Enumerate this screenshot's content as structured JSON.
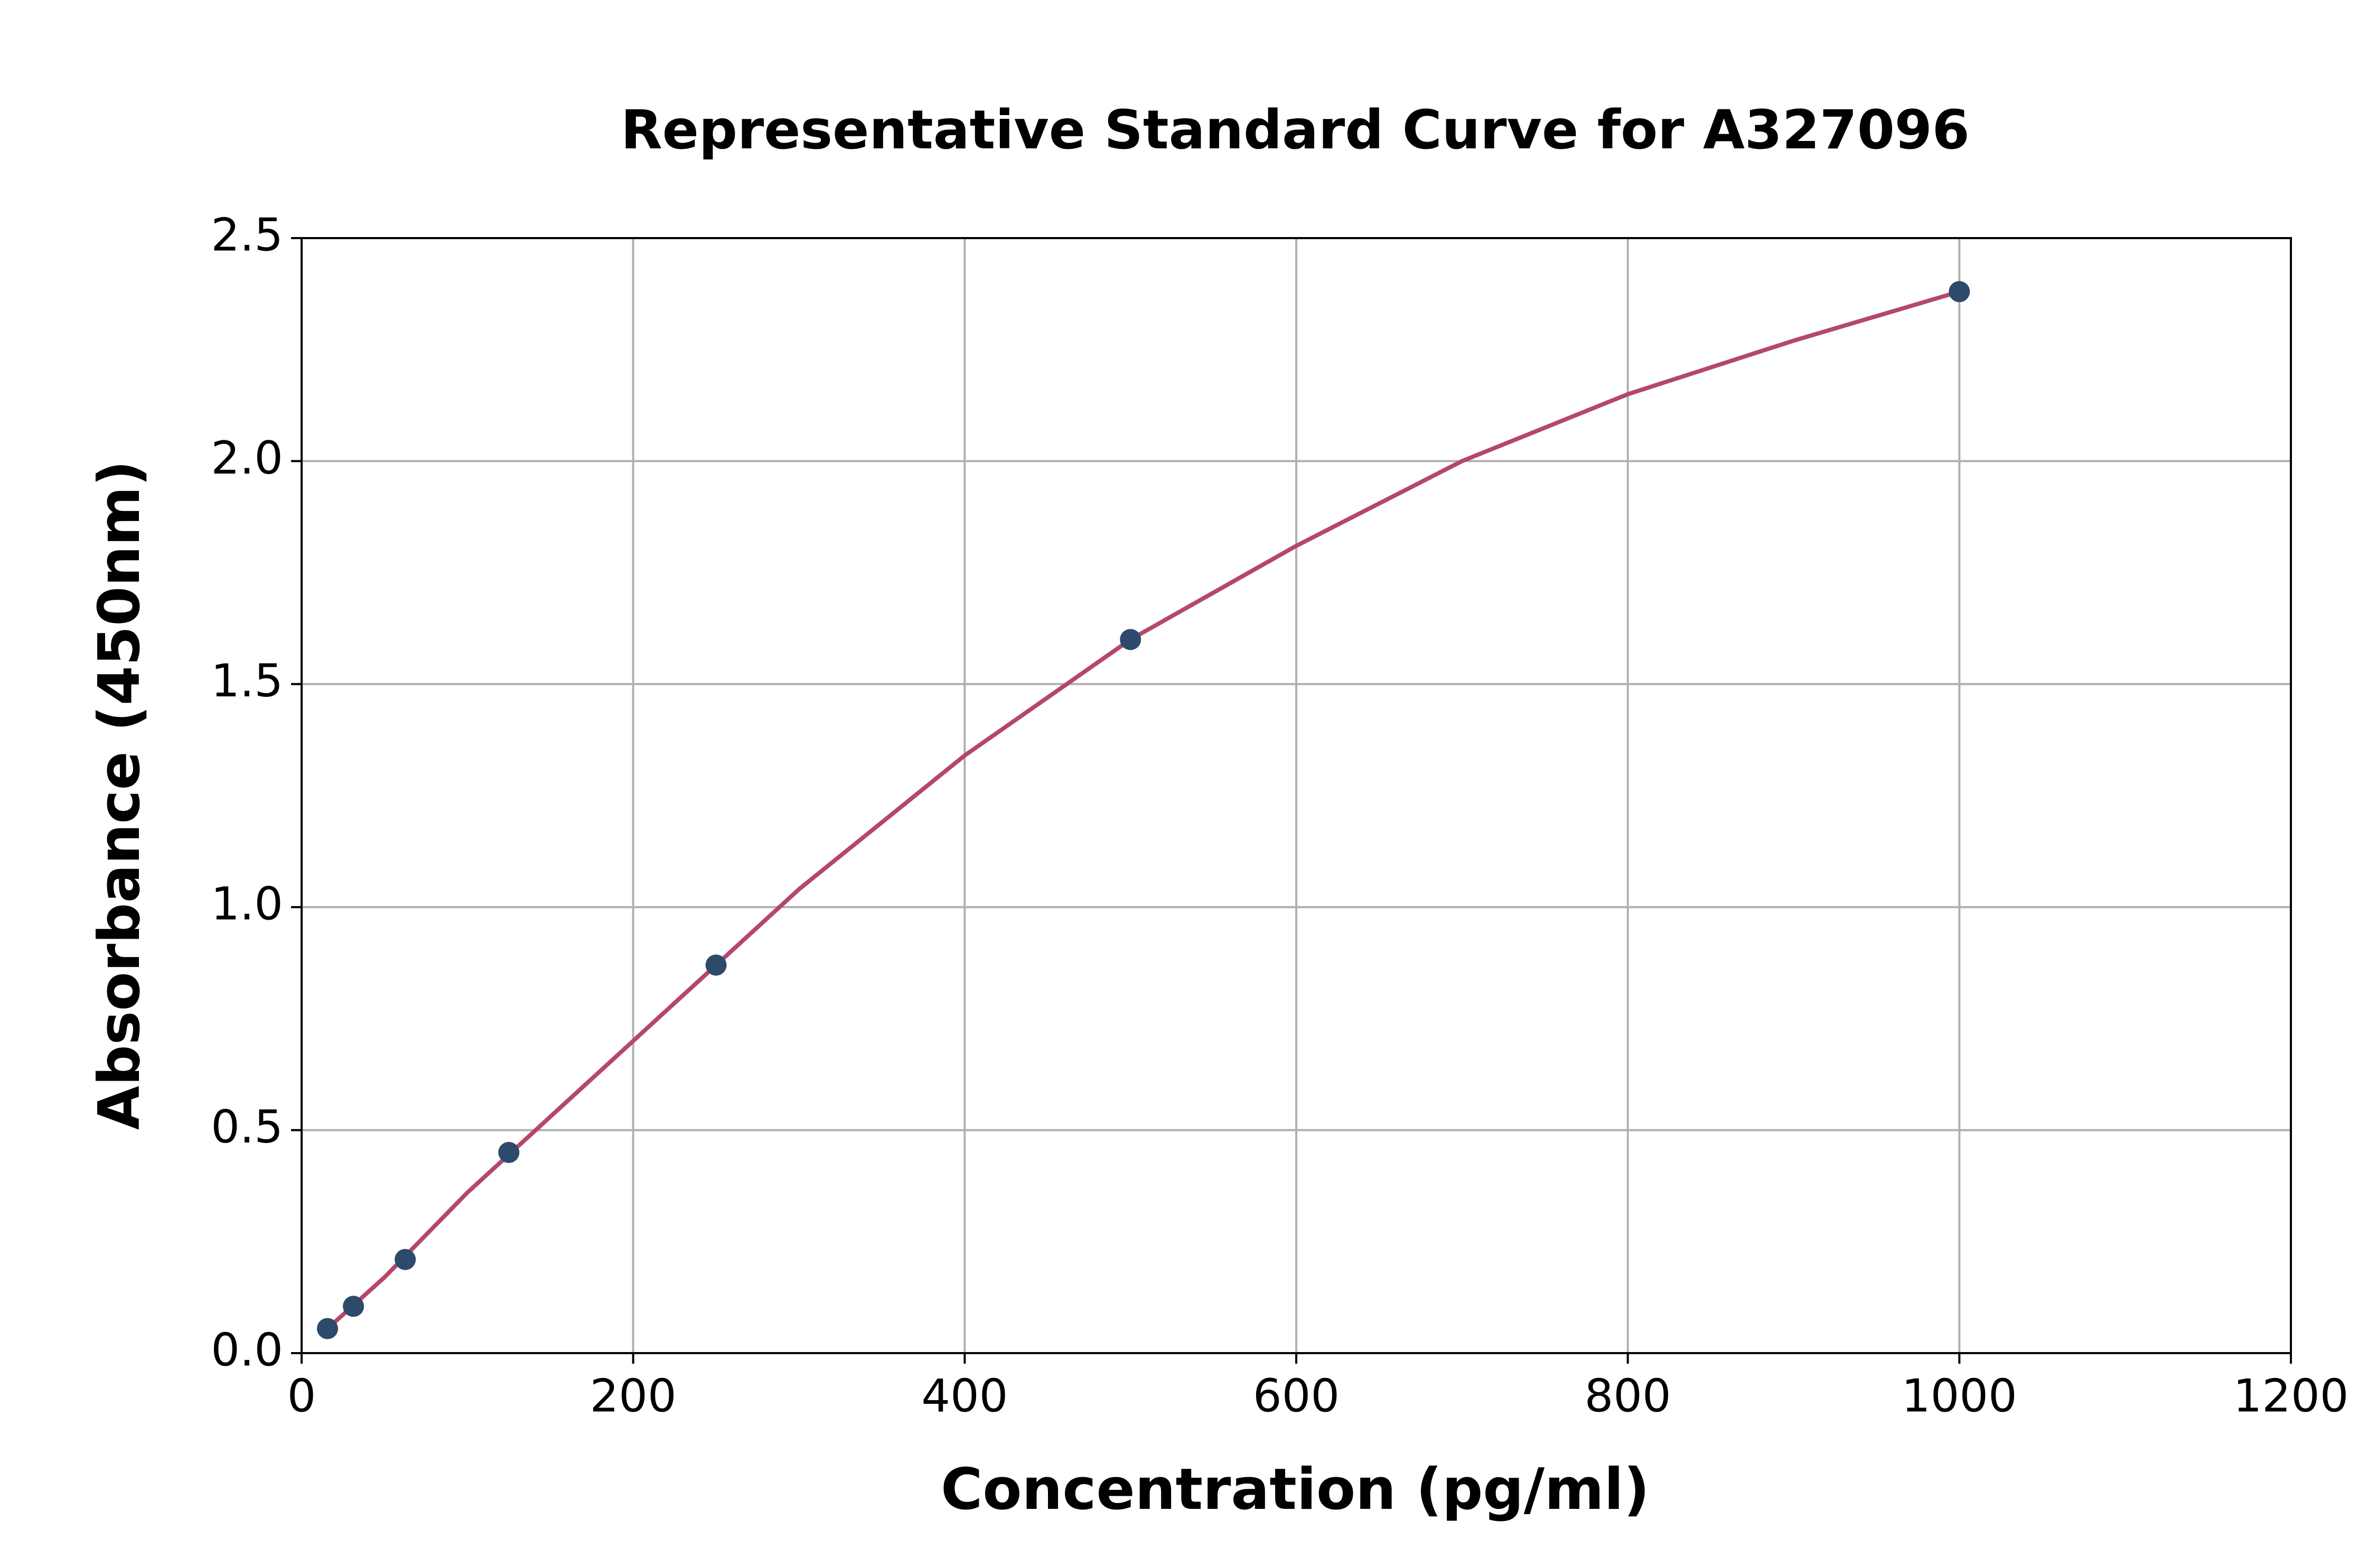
{
  "chart_data": {
    "type": "scatter-with-fit",
    "title": "Representative Standard Curve for A327096",
    "x_label": "Concentration (pg/ml)",
    "y_label": "Absorbance (450nm)",
    "points": {
      "color": "#2d4a6b",
      "x": [
        15.6,
        31.25,
        62.5,
        125,
        250,
        500,
        1000
      ],
      "values": [
        0.055,
        0.105,
        0.21,
        0.45,
        0.87,
        1.6,
        2.38
      ]
    },
    "curve": {
      "color": "#b5476c",
      "x": [
        15.6,
        50,
        100,
        150,
        200,
        250,
        300,
        400,
        500,
        600,
        700,
        800,
        900,
        1000
      ],
      "values": [
        0.055,
        0.17,
        0.36,
        0.53,
        0.7,
        0.87,
        1.04,
        1.34,
        1.6,
        1.81,
        2.0,
        2.15,
        2.27,
        2.38
      ]
    },
    "xlim": [
      0,
      1200
    ],
    "xticks": [
      0,
      200,
      400,
      600,
      800,
      1000,
      1200
    ],
    "ylim": [
      0,
      2.5
    ],
    "yticks": [
      {
        "value": 0,
        "label": "0.0"
      },
      0.5,
      {
        "value": 1,
        "label": "1.0"
      },
      1.5,
      {
        "value": 2,
        "label": "2.0"
      },
      2.5
    ],
    "grid": true
  }
}
